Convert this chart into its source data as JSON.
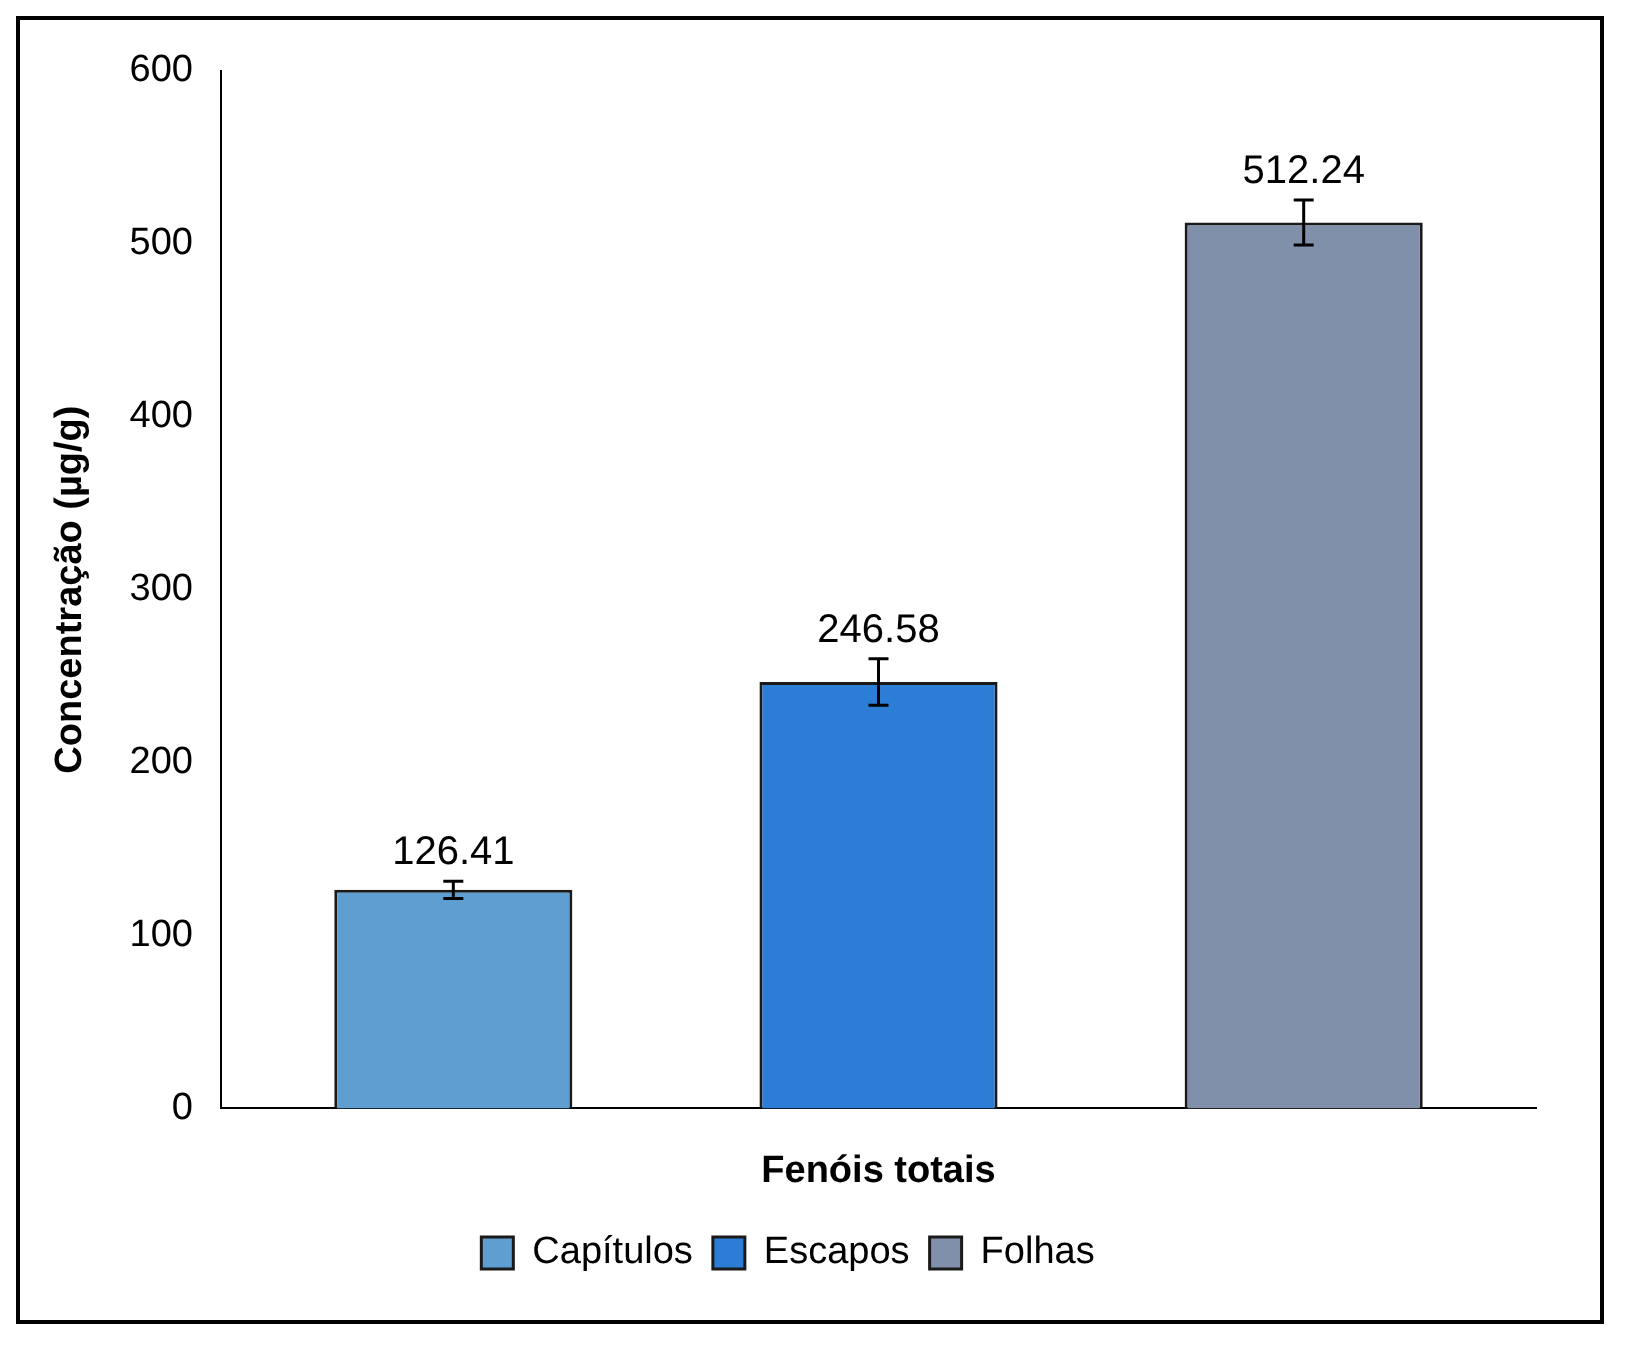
{
  "chart_data": {
    "type": "bar",
    "xlabel": "Fenóis totais",
    "ylabel": "Concentração (µg/g)",
    "categories": [
      null
    ],
    "series": [
      {
        "name": "Capítulos",
        "color": "#5f9ed1",
        "values": [
          126.41
        ],
        "errors": [
          5
        ]
      },
      {
        "name": "Escapos",
        "color": "#2b7dd5",
        "values": [
          246.58
        ],
        "errors": [
          13.5
        ]
      },
      {
        "name": "Folhas",
        "color": "#8090aa",
        "values": [
          512.24
        ],
        "errors": [
          13
        ]
      }
    ],
    "ylim": [
      0,
      600
    ],
    "yticks": [
      0,
      100,
      200,
      300,
      400,
      500,
      600
    ],
    "grid": false,
    "legend": "bottom",
    "data_labels": true
  }
}
